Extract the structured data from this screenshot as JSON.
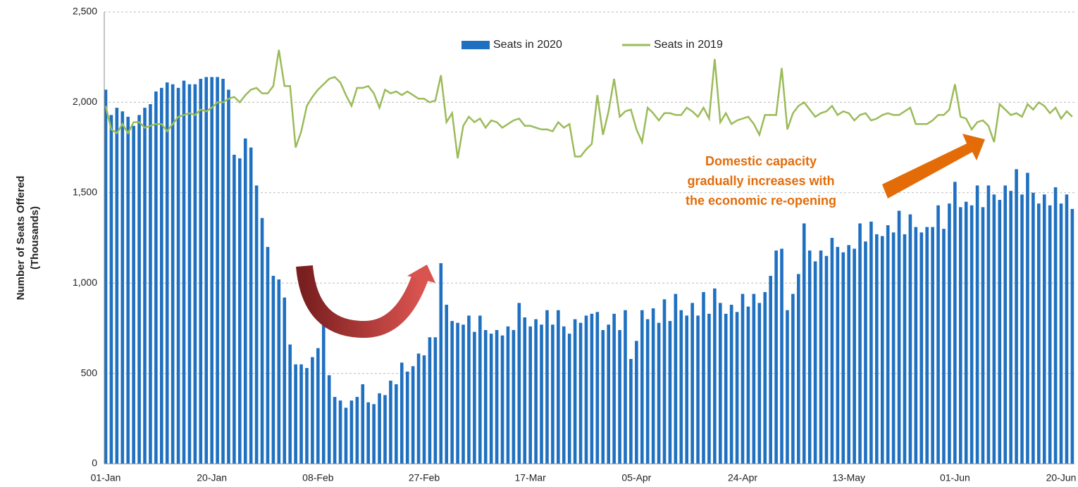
{
  "chart_data": {
    "type": "bar",
    "y_label": [
      "Number of Seats Offered",
      "(Thousands)"
    ],
    "annotation": [
      "Domestic capacity",
      "gradually increases with",
      "the economic re-opening"
    ],
    "legend": "top",
    "grid": true,
    "ylim": [
      0,
      2500
    ],
    "yticks": [
      0,
      500,
      {
        "value": 1000,
        "label": "1,000"
      },
      {
        "value": 1500,
        "label": "1,500"
      },
      {
        "value": 2000,
        "label": "2,000"
      },
      {
        "value": 2500,
        "label": "2,500"
      }
    ],
    "categories": [
      "01-Jan",
      null,
      null,
      null,
      null,
      null,
      null,
      null,
      null,
      null,
      null,
      null,
      null,
      null,
      null,
      null,
      null,
      null,
      null,
      "20-Jan",
      null,
      null,
      null,
      null,
      null,
      null,
      null,
      null,
      null,
      null,
      null,
      null,
      null,
      null,
      null,
      null,
      null,
      null,
      "08-Feb",
      null,
      null,
      null,
      null,
      null,
      null,
      null,
      null,
      null,
      null,
      null,
      null,
      null,
      null,
      null,
      null,
      null,
      null,
      "27-Feb",
      null,
      null,
      null,
      null,
      null,
      null,
      null,
      null,
      null,
      null,
      null,
      null,
      null,
      null,
      null,
      null,
      null,
      null,
      "17-Mar",
      null,
      null,
      null,
      null,
      null,
      null,
      null,
      null,
      null,
      null,
      null,
      null,
      null,
      null,
      null,
      null,
      null,
      null,
      "05-Apr",
      null,
      null,
      null,
      null,
      null,
      null,
      null,
      null,
      null,
      null,
      null,
      null,
      null,
      null,
      null,
      null,
      null,
      null,
      "24-Apr",
      null,
      null,
      null,
      null,
      null,
      null,
      null,
      null,
      null,
      null,
      null,
      null,
      null,
      null,
      null,
      null,
      null,
      null,
      "13-May",
      null,
      null,
      null,
      null,
      null,
      null,
      null,
      null,
      null,
      null,
      null,
      null,
      null,
      null,
      null,
      null,
      null,
      null,
      "01-Jun",
      null,
      null,
      null,
      null,
      null,
      null,
      null,
      null,
      null,
      null,
      null,
      null,
      null,
      null,
      null,
      null,
      null,
      null,
      "20-Jun",
      null,
      null
    ],
    "series": [
      {
        "name": "Seats in 2020",
        "type": "bar",
        "color": "#1f70c1",
        "values": [
          2070,
          1930,
          1970,
          1950,
          1920,
          1870,
          1930,
          1970,
          1990,
          2060,
          2080,
          2110,
          2100,
          2080,
          2120,
          2100,
          2100,
          2130,
          2140,
          2140,
          2140,
          2130,
          2070,
          1710,
          1690,
          1800,
          1750,
          1540,
          1360,
          1200,
          1040,
          1020,
          920,
          660,
          550,
          550,
          530,
          590,
          640,
          820,
          490,
          370,
          350,
          310,
          350,
          370,
          440,
          340,
          330,
          390,
          380,
          460,
          440,
          560,
          510,
          540,
          610,
          600,
          700,
          700,
          1110,
          880,
          790,
          780,
          770,
          820,
          730,
          820,
          740,
          720,
          740,
          710,
          760,
          740,
          890,
          810,
          760,
          800,
          770,
          850,
          770,
          850,
          760,
          720,
          800,
          780,
          820,
          830,
          840,
          740,
          770,
          830,
          740,
          850,
          580,
          680,
          850,
          800,
          860,
          780,
          910,
          790,
          940,
          850,
          820,
          890,
          820,
          950,
          830,
          970,
          890,
          830,
          880,
          840,
          940,
          870,
          940,
          890,
          950,
          1040,
          1180,
          1190,
          850,
          940,
          1050,
          1330,
          1180,
          1120,
          1180,
          1150,
          1250,
          1200,
          1170,
          1210,
          1190,
          1330,
          1230,
          1340,
          1270,
          1260,
          1320,
          1280,
          1400,
          1270,
          1380,
          1310,
          1280,
          1310,
          1310,
          1430,
          1300,
          1440,
          1560,
          1420,
          1450,
          1430,
          1540,
          1420,
          1540,
          1490,
          1460,
          1540,
          1510,
          1630,
          1490,
          1610,
          1500,
          1440,
          1490,
          1430,
          1530,
          1440,
          1490,
          1410
        ]
      },
      {
        "name": "Seats in 2019",
        "type": "line",
        "color": "#9bbb59",
        "values": [
          1980,
          1850,
          1830,
          1880,
          1830,
          1890,
          1890,
          1860,
          1870,
          1880,
          1880,
          1840,
          1880,
          1920,
          1930,
          1940,
          1930,
          1960,
          1950,
          1970,
          2000,
          2000,
          2020,
          2030,
          2000,
          2040,
          2070,
          2080,
          2050,
          2050,
          2090,
          2290,
          2090,
          2090,
          1750,
          1840,
          1980,
          2030,
          2070,
          2100,
          2130,
          2140,
          2110,
          2040,
          1980,
          2080,
          2080,
          2090,
          2050,
          1970,
          2070,
          2050,
          2060,
          2040,
          2060,
          2040,
          2020,
          2020,
          2000,
          2010,
          2150,
          1890,
          1940,
          1690,
          1870,
          1920,
          1890,
          1910,
          1860,
          1900,
          1890,
          1860,
          1880,
          1900,
          1910,
          1870,
          1870,
          1860,
          1850,
          1850,
          1840,
          1890,
          1860,
          1880,
          1700,
          1700,
          1740,
          1770,
          2040,
          1820,
          1950,
          2130,
          1920,
          1950,
          1960,
          1850,
          1780,
          1970,
          1940,
          1900,
          1940,
          1940,
          1930,
          1930,
          1970,
          1950,
          1920,
          1970,
          1910,
          2240,
          1890,
          1940,
          1880,
          1900,
          1910,
          1920,
          1880,
          1820,
          1930,
          1930,
          1930,
          2190,
          1850,
          1940,
          1980,
          2000,
          1960,
          1920,
          1940,
          1950,
          1980,
          1930,
          1950,
          1940,
          1900,
          1930,
          1940,
          1900,
          1910,
          1930,
          1940,
          1930,
          1930,
          1950,
          1970,
          1880,
          1880,
          1880,
          1900,
          1930,
          1930,
          1960,
          2100,
          1920,
          1910,
          1850,
          1890,
          1900,
          1870,
          1780,
          1990,
          1960,
          1930,
          1940,
          1920,
          1990,
          1960,
          2000,
          1980,
          1940,
          1970,
          1910,
          1950,
          1920
        ]
      }
    ]
  }
}
